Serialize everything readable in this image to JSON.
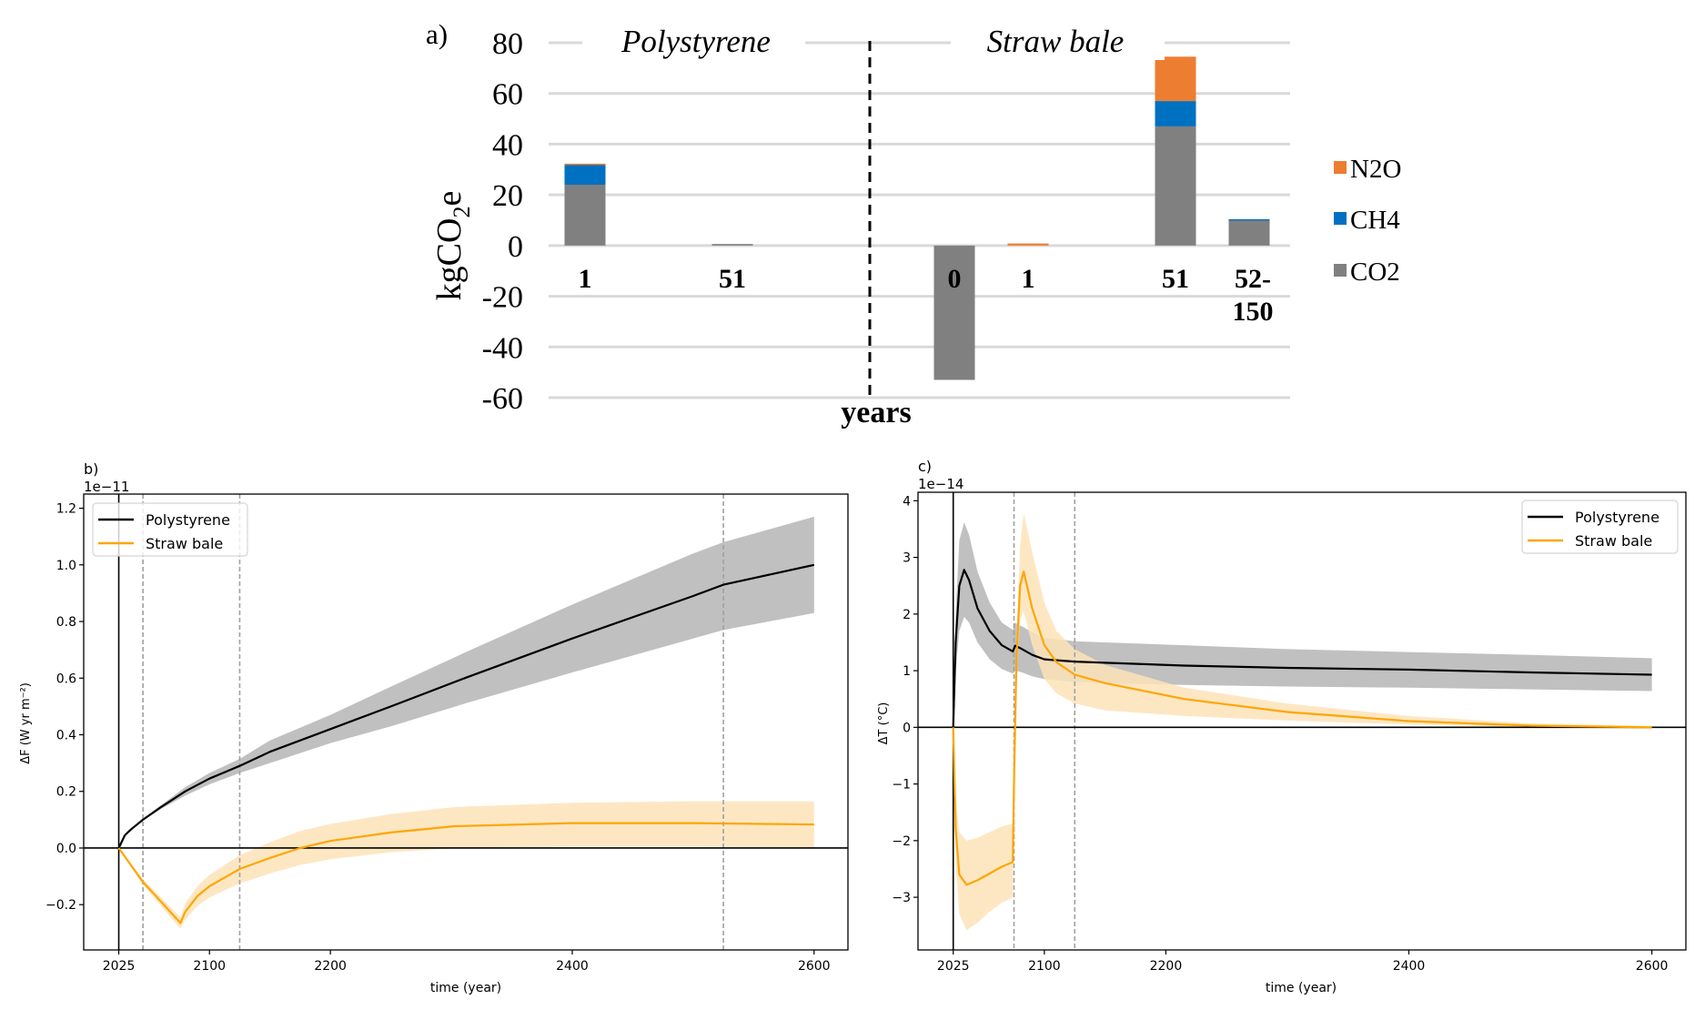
{
  "chart_data": [
    {
      "id": "a",
      "type": "bar",
      "stacked": true,
      "panel_label": "a)",
      "title": "",
      "xlabel": "years",
      "ylabel_main": "kgCO",
      "ylabel_sub": "2",
      "ylabel_tail": "e",
      "ylim": [
        -60,
        80
      ],
      "yticks": [
        80,
        60,
        40,
        20,
        0,
        -20,
        -40,
        -60
      ],
      "ytick_labels": [
        "80",
        "60",
        "40",
        "20",
        "0",
        "-20",
        "-40",
        "-60"
      ],
      "grid": true,
      "groups": [
        {
          "name": "Polystyrene",
          "categories": [
            "1",
            "51"
          ]
        },
        {
          "name": "Straw bale",
          "categories": [
            "0",
            "1",
            "51",
            "52-150"
          ]
        }
      ],
      "categories": [
        "1",
        "51",
        "0",
        "1",
        "51",
        "52-\n150"
      ],
      "category_labels": [
        [
          "1"
        ],
        [
          "51"
        ],
        [
          "0"
        ],
        [
          "1"
        ],
        [
          "51"
        ],
        [
          "52-",
          "150"
        ]
      ],
      "series": [
        {
          "name": "CO2",
          "color": "#808080",
          "values": [
            24,
            0.6,
            -53,
            0,
            47,
            10
          ]
        },
        {
          "name": "CH4",
          "color": "#0070C0",
          "values": [
            8,
            0,
            0,
            0,
            10,
            0.4
          ]
        },
        {
          "name": "N2O",
          "color": "#ED7D31",
          "values": [
            0.3,
            0,
            0,
            0.8,
            17.5,
            0
          ]
        }
      ],
      "legend": {
        "placement": "right",
        "order": [
          "N2O",
          "CH4",
          "CO2"
        ]
      }
    },
    {
      "id": "b",
      "type": "line",
      "panel_label": "b)",
      "offset_label": "1e−11",
      "xlabel": "time (year)",
      "ylabel": "ΔF (W yr m⁻²)",
      "xlim": [
        1996,
        2628
      ],
      "ylim": [
        -0.36,
        1.25
      ],
      "xticks": [
        2025,
        2100,
        2200,
        2400,
        2600
      ],
      "yticks": [
        -0.2,
        0.0,
        0.2,
        0.4,
        0.6,
        0.8,
        1.0,
        1.2
      ],
      "ytick_labels": [
        "−0.2",
        "0.0",
        "0.2",
        "0.4",
        "0.6",
        "0.8",
        "1.0",
        "1.2"
      ],
      "vlines_solid": [
        2025
      ],
      "vlines_dashed": [
        2045,
        2125,
        2525
      ],
      "hline": 0,
      "legend": {
        "placement": "top-left",
        "entries": [
          "Polystyrene",
          "Straw bale"
        ]
      },
      "series": [
        {
          "name": "Polystyrene",
          "color": "#000000",
          "band_color": "#bdbdbd",
          "x": [
            2025,
            2030,
            2035,
            2045,
            2060,
            2080,
            2100,
            2125,
            2150,
            2200,
            2250,
            2311,
            2400,
            2500,
            2525,
            2600
          ],
          "y": [
            0.0,
            0.045,
            0.065,
            0.1,
            0.145,
            0.2,
            0.245,
            0.29,
            0.34,
            0.42,
            0.5,
            0.6,
            0.74,
            0.89,
            0.93,
            1.0
          ],
          "lower": [
            0.0,
            0.044,
            0.063,
            0.097,
            0.138,
            0.185,
            0.225,
            0.265,
            0.3,
            0.37,
            0.43,
            0.51,
            0.62,
            0.74,
            0.77,
            0.83
          ],
          "upper": [
            0.0,
            0.046,
            0.067,
            0.103,
            0.152,
            0.215,
            0.265,
            0.315,
            0.38,
            0.47,
            0.57,
            0.69,
            0.86,
            1.04,
            1.08,
            1.17
          ]
        },
        {
          "name": "Straw bale",
          "color": "#FFA500",
          "band_color": "#fde3b8",
          "x": [
            2025,
            2035,
            2045,
            2060,
            2076,
            2080,
            2090,
            2100,
            2125,
            2150,
            2175,
            2200,
            2250,
            2303,
            2400,
            2500,
            2600
          ],
          "y": [
            0.0,
            -0.06,
            -0.12,
            -0.19,
            -0.265,
            -0.225,
            -0.17,
            -0.135,
            -0.074,
            -0.035,
            0.0,
            0.025,
            0.055,
            0.077,
            0.088,
            0.088,
            0.083
          ],
          "lower": [
            0.0,
            -0.065,
            -0.13,
            -0.205,
            -0.285,
            -0.255,
            -0.205,
            -0.175,
            -0.125,
            -0.09,
            -0.06,
            -0.04,
            -0.015,
            0.0,
            0.005,
            0.005,
            0.002
          ],
          "upper": [
            0.0,
            -0.055,
            -0.11,
            -0.175,
            -0.245,
            -0.195,
            -0.135,
            -0.095,
            -0.025,
            0.02,
            0.06,
            0.085,
            0.12,
            0.145,
            0.16,
            0.165,
            0.165
          ]
        }
      ]
    },
    {
      "id": "c",
      "type": "line",
      "panel_label": "c)",
      "offset_label": "1e−14",
      "xlabel": "time (year)",
      "ylabel": "ΔT (°C)",
      "xlim": [
        1996,
        2628
      ],
      "ylim": [
        -3.93,
        4.15
      ],
      "xticks": [
        2025,
        2100,
        2200,
        2400,
        2600
      ],
      "yticks": [
        -3,
        -2,
        -1,
        0,
        1,
        2,
        3,
        4
      ],
      "ytick_labels": [
        "−3",
        "−2",
        "−1",
        "0",
        "1",
        "2",
        "3",
        "4"
      ],
      "vlines_solid": [
        2025
      ],
      "vlines_dashed": [
        2075,
        2125
      ],
      "hline": 0,
      "legend": {
        "placement": "top-right",
        "entries": [
          "Polystyrene",
          "Straw bale"
        ]
      },
      "series": [
        {
          "name": "Polystyrene",
          "color": "#000000",
          "band_color": "#bdbdbd",
          "x": [
            2025,
            2027,
            2030,
            2034,
            2038,
            2045,
            2055,
            2065,
            2074,
            2076,
            2080,
            2090,
            2100,
            2125,
            2150,
            2215,
            2300,
            2400,
            2500,
            2600
          ],
          "y": [
            0.0,
            1.5,
            2.5,
            2.78,
            2.6,
            2.1,
            1.7,
            1.45,
            1.34,
            1.44,
            1.4,
            1.28,
            1.2,
            1.16,
            1.14,
            1.09,
            1.05,
            1.02,
            0.97,
            0.93
          ],
          "lower": [
            0.0,
            1.0,
            1.7,
            1.95,
            1.85,
            1.5,
            1.2,
            1.03,
            0.95,
            1.0,
            0.98,
            0.9,
            0.85,
            0.8,
            0.78,
            0.75,
            0.72,
            0.7,
            0.67,
            0.64
          ],
          "upper": [
            0.0,
            2.0,
            3.3,
            3.62,
            3.4,
            2.75,
            2.2,
            1.85,
            1.72,
            1.85,
            1.8,
            1.68,
            1.58,
            1.52,
            1.5,
            1.45,
            1.38,
            1.33,
            1.28,
            1.22
          ]
        },
        {
          "name": "Straw bale",
          "color": "#FFA500",
          "band_color": "#fde3b8",
          "x": [
            2025,
            2027,
            2030,
            2036,
            2045,
            2055,
            2065,
            2074,
            2075,
            2077,
            2080,
            2083,
            2090,
            2100,
            2110,
            2125,
            2150,
            2215,
            2300,
            2400,
            2500,
            2600
          ],
          "y": [
            0.0,
            -1.8,
            -2.6,
            -2.78,
            -2.7,
            -2.58,
            -2.46,
            -2.38,
            -1.0,
            1.2,
            2.5,
            2.75,
            2.1,
            1.45,
            1.15,
            0.93,
            0.78,
            0.5,
            0.27,
            0.11,
            0.03,
            0.0
          ],
          "lower": [
            0.0,
            -2.4,
            -3.3,
            -3.58,
            -3.45,
            -3.25,
            -3.1,
            -3.0,
            -1.3,
            0.9,
            1.9,
            2.05,
            1.45,
            0.85,
            0.6,
            0.42,
            0.3,
            0.2,
            0.12,
            0.05,
            0.0,
            -0.03
          ],
          "upper": [
            0.0,
            -1.2,
            -1.85,
            -2.0,
            -1.95,
            -1.85,
            -1.75,
            -1.7,
            -0.7,
            1.6,
            3.2,
            3.78,
            3.1,
            2.2,
            1.7,
            1.38,
            1.1,
            0.7,
            0.42,
            0.2,
            0.07,
            0.03
          ]
        }
      ]
    }
  ]
}
